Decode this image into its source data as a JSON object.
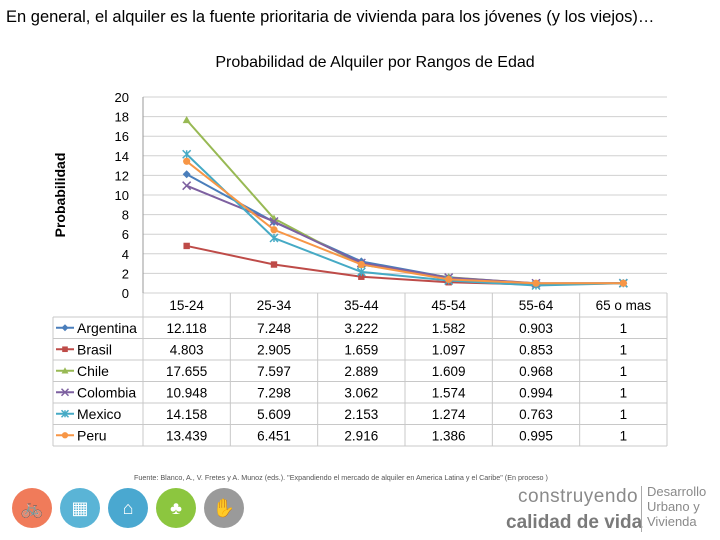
{
  "headline": "En general, el alquiler es la fuente prioritaria de vivienda para los jóvenes (y los viejos)…",
  "source_note": "Fuente: Blanco, A., V. Fretes y A. Munoz (eds.). \"Expandiendo el mercado de alquiler en America Latina y el Caribe\" (En proceso )",
  "footer": {
    "brand_line1": "construyendo",
    "brand_line2": "calidad de vida",
    "brand_right": [
      "Desarrollo",
      "Urbano y",
      "Vivienda"
    ],
    "icons": [
      {
        "name": "bicycle-icon",
        "color": "#f07b5a",
        "glyph": "🚲"
      },
      {
        "name": "buildings-icon",
        "color": "#5ab4d6",
        "glyph": "▦"
      },
      {
        "name": "house-icon",
        "color": "#4aa8d0",
        "glyph": "⌂"
      },
      {
        "name": "community-icon",
        "color": "#8cc63f",
        "glyph": "♣"
      },
      {
        "name": "hands-icon",
        "color": "#9a9a9a",
        "glyph": "✋"
      }
    ]
  },
  "chart_data": {
    "type": "line",
    "title": "Probabilidad de Alquiler por Rangos de Edad",
    "ylabel": "Probabilidad",
    "xlabel": "",
    "ylim": [
      0,
      20
    ],
    "yticks": [
      0,
      2,
      4,
      6,
      8,
      10,
      12,
      14,
      16,
      18,
      20
    ],
    "grid": true,
    "legend": "data-table-below",
    "categories": [
      "15-24",
      "25-34",
      "35-44",
      "45-54",
      "55-64",
      "65 o mas"
    ],
    "series": [
      {
        "name": "Argentina",
        "color": "#4a7ebb",
        "marker": "diamond",
        "values": [
          12.118,
          7.248,
          3.222,
          1.582,
          0.903,
          1
        ]
      },
      {
        "name": "Brasil",
        "color": "#be4b48",
        "marker": "square",
        "values": [
          4.803,
          2.905,
          1.659,
          1.097,
          0.853,
          1
        ]
      },
      {
        "name": "Chile",
        "color": "#98b954",
        "marker": "triangle",
        "values": [
          17.655,
          7.597,
          2.889,
          1.609,
          0.968,
          1
        ]
      },
      {
        "name": "Colombia",
        "color": "#7d60a0",
        "marker": "x",
        "values": [
          10.948,
          7.298,
          3.062,
          1.574,
          0.994,
          1
        ]
      },
      {
        "name": "Mexico",
        "color": "#46aac5",
        "marker": "star",
        "values": [
          14.158,
          5.609,
          2.153,
          1.274,
          0.763,
          1
        ]
      },
      {
        "name": "Peru",
        "color": "#f79646",
        "marker": "circle",
        "values": [
          13.439,
          6.451,
          2.916,
          1.386,
          0.995,
          1
        ]
      }
    ],
    "table_values": [
      [
        "12.118",
        "7.248",
        "3.222",
        "1.582",
        "0.903",
        "1"
      ],
      [
        "4.803",
        "2.905",
        "1.659",
        "1.097",
        "0.853",
        "1"
      ],
      [
        "17.655",
        "7.597",
        "2.889",
        "1.609",
        "0.968",
        "1"
      ],
      [
        "10.948",
        "7.298",
        "3.062",
        "1.574",
        "0.994",
        "1"
      ],
      [
        "14.158",
        "5.609",
        "2.153",
        "1.274",
        "0.763",
        "1"
      ],
      [
        "13.439",
        "6.451",
        "2.916",
        "1.386",
        "0.995",
        "1"
      ]
    ]
  }
}
